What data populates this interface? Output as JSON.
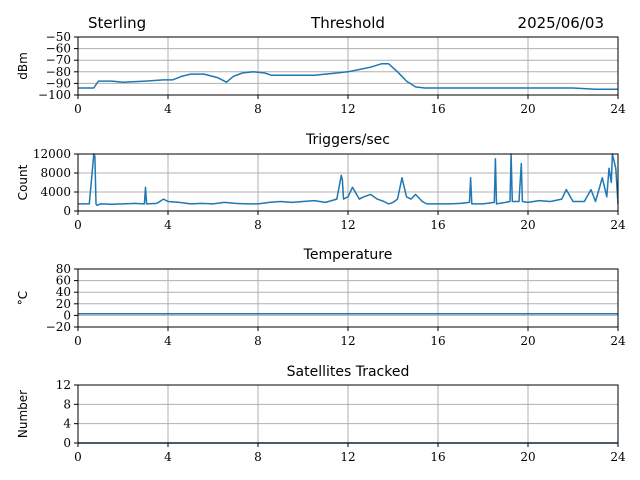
{
  "header": {
    "station": "Sterling",
    "date": "2025/06/03"
  },
  "colors": {
    "series": "#1f77b4",
    "grid": "#b0b0b0"
  },
  "chart_data": [
    {
      "type": "line",
      "title": "Threshold",
      "ylabel": "dBm",
      "xlabel": "",
      "xlim": [
        0,
        24
      ],
      "ylim": [
        -100,
        -50
      ],
      "xticks": [
        0,
        4,
        8,
        12,
        16,
        20,
        24
      ],
      "yticks": [
        -100,
        -90,
        -80,
        -70,
        -60,
        -50
      ],
      "grid": true,
      "series": [
        {
          "x": [
            0,
            0.7,
            0.9,
            1.5,
            2,
            3,
            3.8,
            4.2,
            4.6,
            5,
            5.6,
            6.2,
            6.6,
            6.9,
            7.3,
            7.8,
            8.3,
            8.6,
            9.5,
            10.5,
            11,
            11.5,
            12,
            12.5,
            13,
            13.5,
            13.8,
            14.2,
            14.6,
            15,
            15.4,
            16,
            17,
            18,
            19,
            20,
            21,
            22,
            23,
            24
          ],
          "y": [
            -94,
            -94,
            -88,
            -88,
            -89,
            -88,
            -87,
            -87,
            -84,
            -82,
            -82,
            -85,
            -89,
            -84,
            -81,
            -80,
            -81,
            -83,
            -83,
            -83,
            -82,
            -81,
            -80,
            -78,
            -76,
            -73,
            -73,
            -80,
            -88,
            -93,
            -94,
            -94,
            -94,
            -94,
            -94,
            -94,
            -94,
            -94,
            -95,
            -95
          ]
        }
      ]
    },
    {
      "type": "line",
      "title": "Triggers/sec",
      "ylabel": "Count",
      "xlabel": "",
      "xlim": [
        0,
        24
      ],
      "ylim": [
        0,
        12000
      ],
      "xticks": [
        0,
        4,
        8,
        12,
        16,
        20,
        24
      ],
      "yticks": [
        0,
        4000,
        8000,
        12000
      ],
      "grid": true,
      "series": [
        {
          "x": [
            0,
            0.5,
            0.7,
            0.75,
            0.8,
            0.85,
            1.0,
            1.5,
            2.0,
            2.5,
            2.95,
            3.0,
            3.05,
            3.5,
            3.8,
            4.0,
            4.5,
            5.0,
            5.5,
            6.0,
            6.5,
            7.0,
            7.5,
            8.0,
            8.5,
            9.0,
            9.5,
            10.0,
            10.5,
            11.0,
            11.5,
            11.7,
            11.75,
            11.8,
            12.0,
            12.2,
            12.5,
            12.7,
            13.0,
            13.3,
            13.6,
            13.8,
            14.0,
            14.2,
            14.4,
            14.6,
            14.8,
            15.0,
            15.3,
            15.5,
            16.0,
            16.5,
            17.0,
            17.4,
            17.45,
            17.5,
            18.0,
            18.5,
            18.55,
            18.6,
            19.0,
            19.2,
            19.25,
            19.3,
            19.6,
            19.7,
            19.75,
            20.0,
            20.5,
            21.0,
            21.5,
            21.7,
            22.0,
            22.5,
            22.8,
            23.0,
            23.3,
            23.5,
            23.6,
            23.7,
            23.75,
            23.8,
            23.9,
            24.0
          ],
          "y": [
            1500,
            1500,
            12000,
            11500,
            1500,
            1200,
            1500,
            1400,
            1500,
            1600,
            1500,
            5000,
            1500,
            1600,
            2500,
            2000,
            1800,
            1500,
            1600,
            1500,
            1800,
            1600,
            1500,
            1500,
            1800,
            2000,
            1800,
            2000,
            2200,
            1800,
            2500,
            7500,
            6500,
            2500,
            3000,
            5000,
            2500,
            3000,
            3500,
            2500,
            2000,
            1500,
            1800,
            2500,
            7000,
            3000,
            2500,
            3500,
            2000,
            1500,
            1500,
            1500,
            1600,
            1800,
            7000,
            1500,
            1500,
            1800,
            11000,
            1500,
            1800,
            2000,
            12000,
            2000,
            2000,
            10000,
            2000,
            1800,
            2200,
            2000,
            2500,
            4500,
            2000,
            2000,
            4500,
            2000,
            7000,
            3000,
            9000,
            6000,
            12000,
            11000,
            9000,
            1500
          ]
        }
      ]
    },
    {
      "type": "line",
      "title": "Temperature",
      "ylabel": "°C",
      "xlabel": "",
      "xlim": [
        0,
        24
      ],
      "ylim": [
        -20,
        80
      ],
      "xticks": [
        0,
        4,
        8,
        12,
        16,
        20,
        24
      ],
      "yticks": [
        -20,
        0,
        20,
        40,
        60,
        80
      ],
      "grid": true,
      "series": [
        {
          "x": [
            0,
            24
          ],
          "y": [
            3,
            3
          ]
        }
      ]
    },
    {
      "type": "line",
      "title": "Satellites Tracked",
      "ylabel": "Number",
      "xlabel": "",
      "xlim": [
        0,
        24
      ],
      "ylim": [
        0,
        12
      ],
      "xticks": [
        0,
        4,
        8,
        12,
        16,
        20,
        24
      ],
      "yticks": [
        0,
        4,
        8,
        12
      ],
      "grid": true,
      "series": [
        {
          "x": [
            0,
            24
          ],
          "y": [
            0,
            0
          ]
        }
      ]
    }
  ]
}
